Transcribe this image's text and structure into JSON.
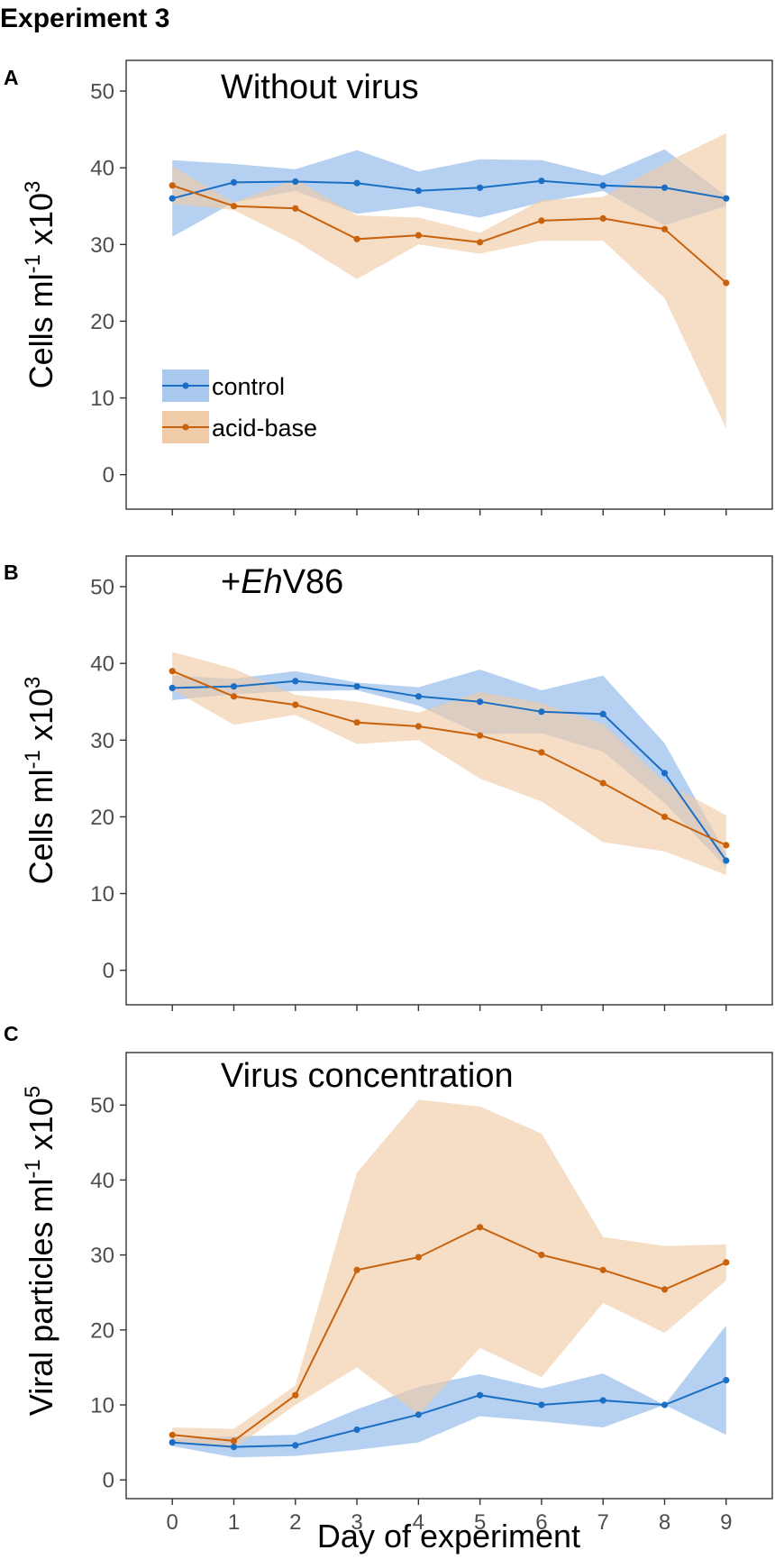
{
  "figure_title": "Experiment 3",
  "colors": {
    "control": "#1a6fc4",
    "control_band": "#a8c8ee",
    "acid_base": "#c8620d",
    "acid_base_band": "#efcba8"
  },
  "legend": {
    "items": [
      {
        "key": "control",
        "label": "control"
      },
      {
        "key": "acid_base",
        "label": "acid-base"
      }
    ]
  },
  "chart_data": [
    {
      "type": "line",
      "panel_label": "A",
      "title": "Without virus",
      "title_parts": [
        {
          "text": "Without virus",
          "italic": false
        }
      ],
      "ylabel_parts": [
        {
          "text": "Cells ml",
          "baseline": "normal"
        },
        {
          "text": "-1",
          "baseline": "super"
        },
        {
          "text": " x10",
          "baseline": "normal"
        },
        {
          "text": "3",
          "baseline": "super"
        }
      ],
      "xlabel": "",
      "ylim": [
        -4.5,
        54
      ],
      "yticks": [
        0,
        10,
        20,
        30,
        40,
        50
      ],
      "xlim": [
        -0.75,
        9.75
      ],
      "xticks": [
        0,
        1,
        2,
        3,
        4,
        5,
        6,
        7,
        8,
        9
      ],
      "show_x_tick_labels": false,
      "show_legend": true,
      "legend_position": "bottom-left",
      "x": [
        0,
        1,
        2,
        3,
        4,
        5,
        6,
        7,
        8,
        9
      ],
      "series": [
        {
          "name": "control",
          "values": [
            36,
            38.1,
            38.2,
            38,
            37,
            37.4,
            38.3,
            37.7,
            37.4,
            36
          ],
          "lower": [
            31,
            35.5,
            37,
            34,
            35,
            33.5,
            35.5,
            37,
            32.5,
            35
          ],
          "upper": [
            41,
            40.5,
            39.8,
            42.3,
            39.5,
            41.1,
            41,
            39,
            42.4,
            36.3
          ]
        },
        {
          "name": "acid-base",
          "values": [
            37.7,
            35,
            34.7,
            30.7,
            31.2,
            30.3,
            33.1,
            33.4,
            32,
            25
          ],
          "lower": [
            35.3,
            34.5,
            30.5,
            25.5,
            30,
            28.8,
            30.5,
            30.5,
            23,
            6
          ],
          "upper": [
            40.2,
            35.5,
            38.5,
            33.8,
            33.5,
            31.5,
            35.8,
            36.2,
            40.6,
            44.5
          ]
        }
      ]
    },
    {
      "type": "line",
      "panel_label": "B",
      "title": "+EhV86",
      "title_parts": [
        {
          "text": "+",
          "italic": false
        },
        {
          "text": "Eh",
          "italic": true
        },
        {
          "text": "V86",
          "italic": false
        }
      ],
      "ylabel_parts": [
        {
          "text": "Cells ml",
          "baseline": "normal"
        },
        {
          "text": "-1",
          "baseline": "super"
        },
        {
          "text": " x10",
          "baseline": "normal"
        },
        {
          "text": "3",
          "baseline": "super"
        }
      ],
      "xlabel": "",
      "ylim": [
        -4.5,
        54
      ],
      "yticks": [
        0,
        10,
        20,
        30,
        40,
        50
      ],
      "xlim": [
        -0.75,
        9.75
      ],
      "xticks": [
        0,
        1,
        2,
        3,
        4,
        5,
        6,
        7,
        8,
        9
      ],
      "show_x_tick_labels": false,
      "show_legend": false,
      "x": [
        0,
        1,
        2,
        3,
        4,
        5,
        6,
        7,
        8,
        9
      ],
      "series": [
        {
          "name": "control",
          "values": [
            36.8,
            37,
            37.7,
            37,
            35.7,
            35,
            33.7,
            33.4,
            25.7,
            14.3
          ],
          "lower": [
            35.2,
            36,
            36.4,
            36.5,
            34.5,
            30.8,
            30.9,
            28.5,
            21.8,
            13.4
          ],
          "upper": [
            38.4,
            38,
            39,
            37.5,
            36.9,
            39.2,
            36.5,
            38.4,
            29.6,
            15.2
          ]
        },
        {
          "name": "acid-base",
          "values": [
            39,
            35.7,
            34.6,
            32.3,
            31.8,
            30.6,
            28.4,
            24.4,
            20,
            16.3
          ],
          "lower": [
            36.6,
            32,
            33.3,
            29.5,
            30,
            25,
            22,
            16.7,
            15.5,
            12.4
          ],
          "upper": [
            41.5,
            39.3,
            35.9,
            35,
            33.6,
            36.3,
            34.8,
            32.1,
            24.5,
            20.2
          ]
        }
      ]
    },
    {
      "type": "line",
      "panel_label": "C",
      "title": "Virus concentration",
      "title_parts": [
        {
          "text": "Virus concentration",
          "italic": false
        }
      ],
      "ylabel_parts": [
        {
          "text": "Viral particles ml",
          "baseline": "normal"
        },
        {
          "text": "-1",
          "baseline": "super"
        },
        {
          "text": " x10",
          "baseline": "normal"
        },
        {
          "text": "5",
          "baseline": "super"
        }
      ],
      "xlabel": "Day of experiment",
      "ylim": [
        -2.5,
        57
      ],
      "yticks": [
        0,
        10,
        20,
        30,
        40,
        50
      ],
      "xlim": [
        -0.75,
        9.75
      ],
      "xticks": [
        0,
        1,
        2,
        3,
        4,
        5,
        6,
        7,
        8,
        9
      ],
      "xtick_labels": [
        "0",
        "1",
        "2",
        "3",
        "4",
        "5",
        "6",
        "7",
        "8",
        "9"
      ],
      "show_x_tick_labels": true,
      "show_legend": false,
      "x": [
        0,
        1,
        2,
        3,
        4,
        5,
        6,
        7,
        8,
        9
      ],
      "series": [
        {
          "name": "control",
          "values": [
            5,
            4.4,
            4.6,
            6.7,
            8.7,
            11.3,
            10,
            10.6,
            10,
            13.3
          ],
          "lower": [
            4.5,
            3,
            3.2,
            4,
            5,
            8.5,
            7.8,
            7,
            10,
            6
          ],
          "upper": [
            5.5,
            5.8,
            6,
            9.4,
            12.4,
            14.1,
            12.2,
            14.2,
            10,
            20.6
          ]
        },
        {
          "name": "acid-base",
          "values": [
            6,
            5.2,
            11.3,
            28,
            29.7,
            33.7,
            30,
            28,
            25.4,
            29
          ],
          "lower": [
            5,
            4.2,
            10,
            15,
            8.7,
            17.6,
            13.7,
            23.6,
            19.6,
            26.6
          ],
          "upper": [
            7,
            6.8,
            12.6,
            41,
            50.7,
            49.8,
            46.2,
            32.4,
            31.2,
            31.4
          ]
        }
      ]
    }
  ]
}
